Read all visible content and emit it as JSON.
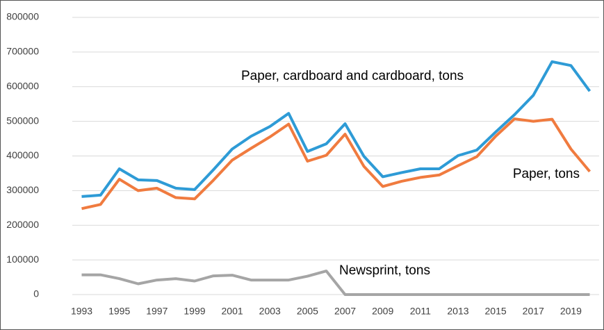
{
  "chart_data": {
    "type": "line",
    "categories": [
      "1993",
      null,
      "1995",
      null,
      "1997",
      null,
      "1999",
      null,
      "2001",
      null,
      "2003",
      null,
      "2005",
      null,
      "2007",
      null,
      "2009",
      null,
      "2011",
      null,
      "2013",
      null,
      "2015",
      null,
      "2017",
      null,
      "2019",
      null
    ],
    "series": [
      {
        "name": "Paper, cardboard and cardboard, tons",
        "color": "#2e9bd6",
        "values": [
          283000,
          287000,
          363000,
          331000,
          329000,
          307000,
          303000,
          360000,
          420000,
          457000,
          485000,
          523000,
          413000,
          435000,
          493000,
          399000,
          340000,
          352000,
          363000,
          363000,
          401000,
          417000,
          469000,
          519000,
          575000,
          672000,
          661000,
          587000
        ]
      },
      {
        "name": "Paper, tons",
        "color": "#f07b3f",
        "values": [
          248000,
          260000,
          333000,
          300000,
          307000,
          280000,
          276000,
          330000,
          388000,
          422000,
          455000,
          492000,
          385000,
          402000,
          463000,
          370000,
          312000,
          327000,
          338000,
          345000,
          372000,
          398000,
          457000,
          507000,
          500000,
          506000,
          420000,
          355000
        ]
      },
      {
        "name": "Newsprint, tons",
        "color": "#a5a5a5",
        "values": [
          57000,
          57000,
          46000,
          31000,
          42000,
          46000,
          39000,
          54000,
          56000,
          42000,
          42000,
          42000,
          53000,
          68000,
          0,
          0,
          0,
          0,
          0,
          0,
          0,
          0,
          0,
          0,
          0,
          0,
          0,
          0
        ]
      }
    ],
    "ylim": [
      0,
      800000
    ],
    "yticks": [
      0,
      100000,
      200000,
      300000,
      400000,
      500000,
      600000,
      700000,
      800000
    ],
    "grid": true
  }
}
